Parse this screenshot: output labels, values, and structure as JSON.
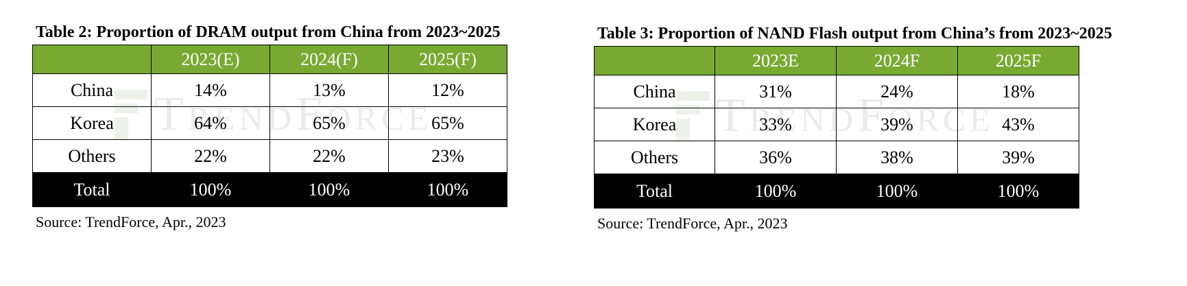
{
  "watermark": "TrendForce",
  "colors": {
    "header_bg": "#78aa32",
    "total_bg": "#000000"
  },
  "tables": [
    {
      "caption": "Table 2: Proportion of DRAM output from China from 2023~2025",
      "header": [
        "",
        "2023(E)",
        "2024(F)",
        "2025(F)"
      ],
      "rows": [
        [
          "China",
          "14%",
          "13%",
          "12%"
        ],
        [
          "Korea",
          "64%",
          "65%",
          "65%"
        ],
        [
          "Others",
          "22%",
          "22%",
          "23%"
        ]
      ],
      "total": [
        "Total",
        "100%",
        "100%",
        "100%"
      ],
      "source": "Source: TrendForce, Apr., 2023"
    },
    {
      "caption": "Table 3: Proportion of NAND Flash output from China’s from 2023~2025",
      "header": [
        "",
        "2023E",
        "2024F",
        "2025F"
      ],
      "rows": [
        [
          "China",
          "31%",
          "24%",
          "18%"
        ],
        [
          "Korea",
          "33%",
          "39%",
          "43%"
        ],
        [
          "Others",
          "36%",
          "38%",
          "39%"
        ]
      ],
      "total": [
        "Total",
        "100%",
        "100%",
        "100%"
      ],
      "source": "Source: TrendForce, Apr., 2023"
    }
  ]
}
